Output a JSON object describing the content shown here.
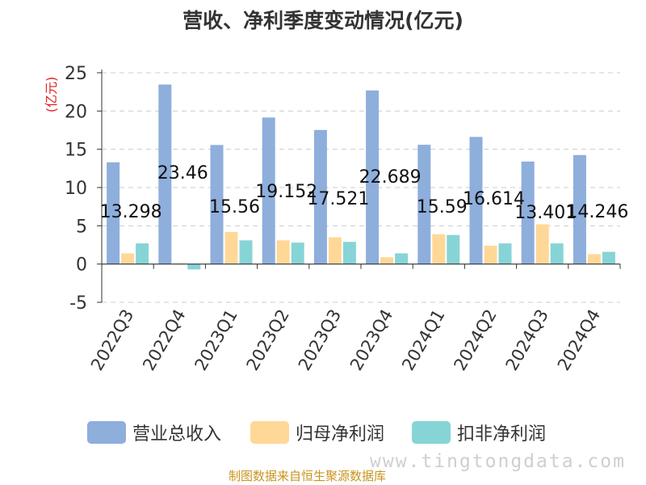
{
  "chart_data": {
    "type": "bar",
    "title": "营收、净利季度变动情况(亿元)",
    "ylabel": "(亿元)",
    "xlabel": "",
    "ylim": [
      -5,
      25
    ],
    "yticks": [
      25,
      20,
      15,
      10,
      5,
      0,
      -5
    ],
    "categories": [
      "2022Q3",
      "2022Q4",
      "2023Q1",
      "2023Q2",
      "2023Q3",
      "2023Q4",
      "2024Q1",
      "2024Q2",
      "2024Q3",
      "2024Q4"
    ],
    "series": [
      {
        "name": "营业总收入",
        "color": "#8eaedc",
        "values": [
          13.298,
          23.46,
          15.56,
          19.152,
          17.521,
          22.689,
          15.59,
          16.614,
          13.401,
          14.246
        ],
        "labels": [
          "13.298",
          "23.46",
          "15.56",
          "19.152",
          "17.521",
          "22.689",
          "15.59",
          "16.614",
          "13.401",
          "14.246"
        ]
      },
      {
        "name": "归母净利润",
        "color": "#ffd898",
        "values": [
          1.4,
          0.1,
          4.2,
          3.1,
          3.5,
          0.9,
          3.9,
          2.4,
          5.2,
          1.3
        ]
      },
      {
        "name": "扣非净利润",
        "color": "#87d4d6",
        "values": [
          2.7,
          -0.7,
          3.1,
          2.8,
          2.9,
          1.4,
          3.8,
          2.7,
          2.7,
          1.6
        ]
      }
    ],
    "grid": true,
    "legend_position": "bottom"
  },
  "footer": {
    "source": "制图数据来自恒生聚源数据库",
    "watermark": "www.tingtongdata.com"
  }
}
